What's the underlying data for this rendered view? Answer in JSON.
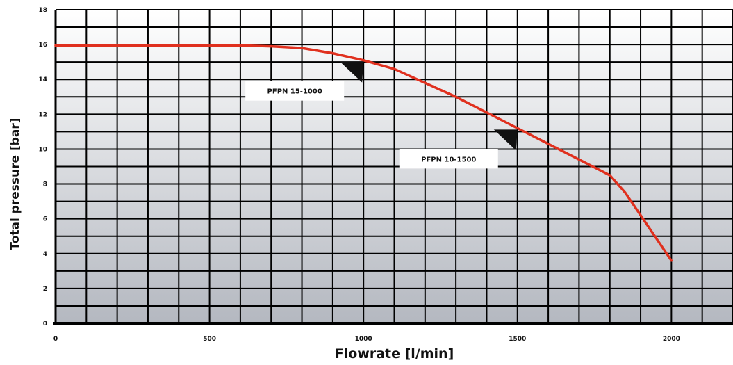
{
  "chart_data": {
    "type": "line",
    "title": "",
    "xlabel": "Flowrate [l/min]",
    "ylabel": "Total pressure [bar]",
    "xlim": [
      0,
      2200
    ],
    "ylim": [
      0,
      18
    ],
    "x_ticks": [
      0,
      500,
      1000,
      1500,
      2000
    ],
    "x_tick_labels": [
      "0",
      "500",
      "1000",
      "1500",
      "2000"
    ],
    "y_ticks": [
      0,
      2,
      4,
      6,
      8,
      10,
      12,
      14,
      16,
      18
    ],
    "y_tick_labels": [
      "0",
      "2",
      "4",
      "6",
      "8",
      "10",
      "12",
      "14",
      "16",
      "18"
    ],
    "grid": true,
    "series": [
      {
        "color": "#e0301e",
        "x": [
          0,
          200,
          400,
          600,
          700,
          800,
          900,
          1000,
          1100,
          1200,
          1300,
          1400,
          1500,
          1600,
          1700,
          1800,
          1850,
          1900,
          1950,
          2000
        ],
        "y": [
          15.95,
          15.95,
          15.95,
          15.95,
          15.9,
          15.8,
          15.5,
          15.1,
          14.6,
          13.8,
          13.0,
          12.1,
          11.2,
          10.3,
          9.4,
          8.5,
          7.5,
          6.2,
          4.9,
          3.6
        ]
      }
    ],
    "annotations": [
      {
        "text": "PFPN 15-1000",
        "x": 1000,
        "y": 15.1
      },
      {
        "text": "PFPN 10-1500",
        "x": 1500,
        "y": 11.2
      }
    ]
  }
}
